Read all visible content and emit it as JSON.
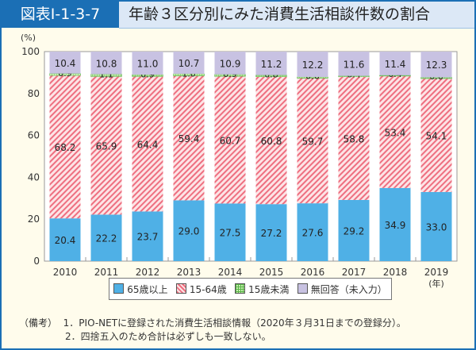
{
  "header": {
    "figure_number": "図表Ⅰ-1-3-7",
    "title": "年齢３区分別にみた消費生活相談件数の割合"
  },
  "chart_data": {
    "type": "bar",
    "stacked": true,
    "ylabel": "(%)",
    "xunit": "(年)",
    "ylim": [
      0,
      100
    ],
    "yticks": [
      0,
      20,
      40,
      60,
      80,
      100
    ],
    "categories": [
      "2010",
      "2011",
      "2012",
      "2013",
      "2014",
      "2015",
      "2016",
      "2017",
      "2018",
      "2019"
    ],
    "series": [
      {
        "name": "65歳以上",
        "color": "#4fb0e6",
        "values": [
          20.4,
          22.2,
          23.7,
          29.0,
          27.5,
          27.2,
          27.6,
          29.2,
          34.9,
          33.0
        ]
      },
      {
        "name": "15-64歳",
        "color": "#f7b8c0",
        "pattern": "diagonal-hatch",
        "values": [
          68.2,
          65.9,
          64.4,
          59.4,
          60.7,
          60.8,
          59.7,
          58.8,
          53.4,
          54.1
        ]
      },
      {
        "name": "15歳未満",
        "color": "#a8e08a",
        "pattern": "grid",
        "values": [
          0.9,
          1.1,
          0.9,
          1.0,
          0.9,
          0.8,
          0.6,
          0.4,
          0.4,
          0.6
        ]
      },
      {
        "name": "無回答（未入力）",
        "color": "#c8c2e2",
        "values": [
          10.4,
          10.8,
          11.0,
          10.7,
          10.9,
          11.2,
          12.2,
          11.6,
          11.4,
          12.3
        ]
      }
    ],
    "legend_position": "bottom"
  },
  "notes": {
    "label": "（備考）",
    "items": [
      "1．PIO-NETに登録された消費生活相談情報（2020年３月31日までの登録分）。",
      "2．四捨五入のため合計は必ずしも一致しない。"
    ]
  }
}
